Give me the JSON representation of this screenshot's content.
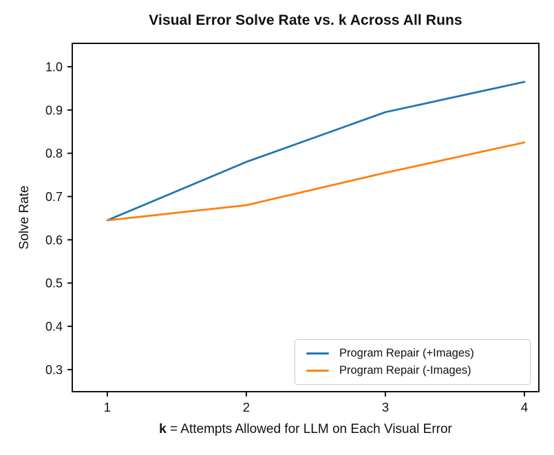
{
  "chart_data": {
    "type": "line",
    "title": "Visual Error Solve Rate vs. k Across All Runs",
    "xlabel_bold": "k",
    "xlabel_rest": " = Attempts Allowed for LLM on Each Visual Error",
    "ylabel": "Solve Rate",
    "x": [
      1,
      2,
      3,
      4
    ],
    "x_tick_labels": [
      "1",
      "2",
      "3",
      "4"
    ],
    "y_ticks": [
      0.3,
      0.4,
      0.5,
      0.6,
      0.7,
      0.8,
      0.9,
      1.0
    ],
    "y_tick_labels": [
      "0.3",
      "0.4",
      "0.5",
      "0.6",
      "0.7",
      "0.8",
      "0.9",
      "1.0"
    ],
    "xlim": [
      0.748,
      4.104
    ],
    "ylim": [
      0.249,
      1.054
    ],
    "grid": false,
    "legend_position": "lower right",
    "series": [
      {
        "name": "Program Repair (+Images)",
        "color": "#1f77b4",
        "values": [
          0.645,
          0.78,
          0.895,
          0.965
        ]
      },
      {
        "name": "Program Repair (-Images)",
        "color": "#ff7f0e",
        "values": [
          0.645,
          0.68,
          0.755,
          0.825
        ]
      }
    ]
  },
  "colors": {
    "axis": "#111111",
    "background": "#ffffff",
    "legend_border": "#c9c9c9"
  }
}
